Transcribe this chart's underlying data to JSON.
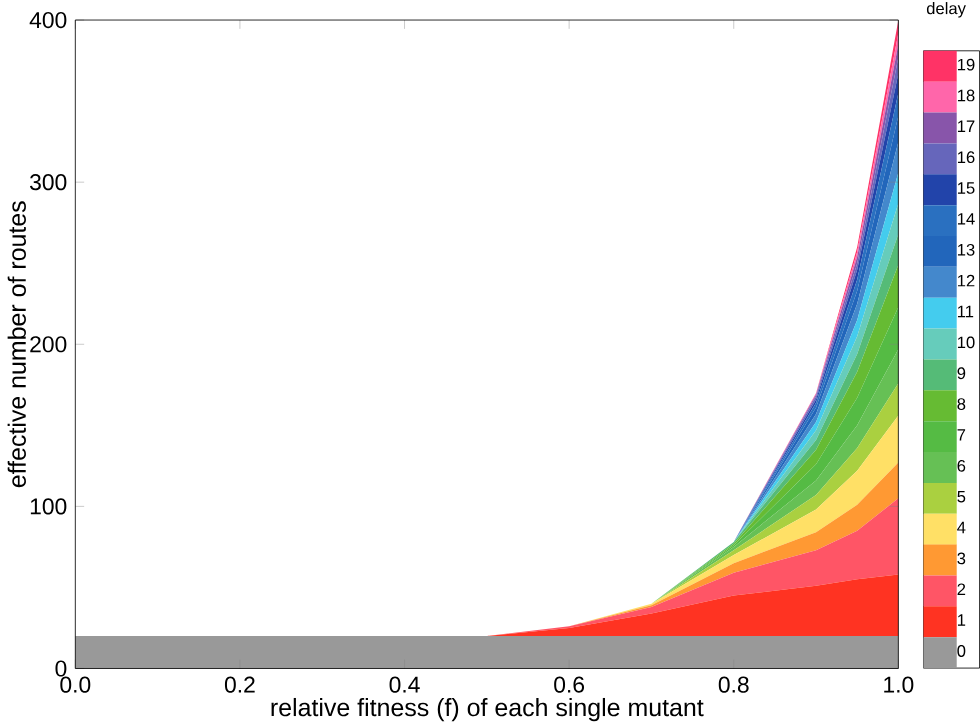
{
  "chart_data": {
    "type": "area",
    "stacked": true,
    "xlabel": "relative fitness (f) of each single mutant",
    "ylabel": "effective number of routes",
    "legend_title": "delay",
    "legend": "right",
    "grid": false,
    "x": [
      0,
      0.5,
      0.6,
      0.7,
      0.8,
      0.9,
      0.95,
      1.0
    ],
    "xlim": [
      0,
      1
    ],
    "xticks": [
      {
        "value": 0,
        "label": "0.0"
      },
      {
        "value": 0.2,
        "label": "0.2"
      },
      {
        "value": 0.4,
        "label": "0.4"
      },
      {
        "value": 0.6,
        "label": "0.6"
      },
      {
        "value": 0.8,
        "label": "0.8"
      },
      {
        "value": 1,
        "label": "1.0"
      }
    ],
    "ylim": [
      0,
      400
    ],
    "yticks": [
      0,
      100,
      200,
      300,
      400
    ],
    "series": [
      {
        "name": "0",
        "color": "#999999",
        "values": [
          20,
          20,
          20,
          20,
          20,
          20,
          20,
          20
        ]
      },
      {
        "name": "1",
        "color": "#ff3322",
        "values": [
          0,
          0,
          5,
          14,
          25,
          31,
          35,
          38
        ]
      },
      {
        "name": "2",
        "color": "#ff5566",
        "values": [
          0,
          0,
          1,
          4,
          14,
          22,
          30,
          47
        ]
      },
      {
        "name": "3",
        "color": "#ff9933",
        "values": [
          0,
          0,
          0,
          1,
          6,
          11,
          16,
          22
        ]
      },
      {
        "name": "4",
        "color": "#ffe066",
        "values": [
          0,
          0,
          0,
          1,
          5,
          14,
          21,
          29
        ]
      },
      {
        "name": "5",
        "color": "#aad040",
        "values": [
          0,
          0,
          0,
          0,
          3,
          9,
          14,
          20
        ]
      },
      {
        "name": "6",
        "color": "#66c055",
        "values": [
          0,
          0,
          0,
          0,
          2,
          9,
          14,
          21
        ]
      },
      {
        "name": "7",
        "color": "#55bb44",
        "values": [
          0,
          0,
          0,
          0,
          1,
          10,
          17,
          26
        ]
      },
      {
        "name": "8",
        "color": "#66bb33",
        "values": [
          0,
          0,
          0,
          0,
          1,
          9,
          16,
          26
        ]
      },
      {
        "name": "9",
        "color": "#55bb77",
        "values": [
          0,
          0,
          0,
          0,
          1,
          6,
          11,
          19
        ]
      },
      {
        "name": "10",
        "color": "#66ccbb",
        "values": [
          0,
          0,
          0,
          0,
          0,
          6,
          11,
          19
        ]
      },
      {
        "name": "11",
        "color": "#44ccee",
        "values": [
          0,
          0,
          0,
          0,
          0,
          5,
          10,
          19
        ]
      },
      {
        "name": "12",
        "color": "#4488cc",
        "values": [
          0,
          0,
          0,
          0,
          0,
          5,
          10,
          19
        ]
      },
      {
        "name": "13",
        "color": "#2266bb",
        "values": [
          0,
          0,
          0,
          0,
          0,
          4,
          8,
          16
        ]
      },
      {
        "name": "14",
        "color": "#2a70c0",
        "values": [
          0,
          0,
          0,
          0,
          0,
          3,
          7,
          14
        ]
      },
      {
        "name": "15",
        "color": "#2244aa",
        "values": [
          0,
          0,
          0,
          0,
          0,
          2,
          6,
          12
        ]
      },
      {
        "name": "16",
        "color": "#6666bb",
        "values": [
          0,
          0,
          0,
          0,
          0,
          2,
          4,
          10
        ]
      },
      {
        "name": "17",
        "color": "#8855aa",
        "values": [
          0,
          0,
          0,
          0,
          0,
          1,
          4,
          8
        ]
      },
      {
        "name": "18",
        "color": "#ff66aa",
        "values": [
          0,
          0,
          0,
          0,
          0,
          1,
          3,
          7
        ]
      },
      {
        "name": "19",
        "color": "#ff3366",
        "values": [
          0,
          0,
          0,
          0,
          0,
          0,
          3,
          8
        ]
      }
    ]
  }
}
